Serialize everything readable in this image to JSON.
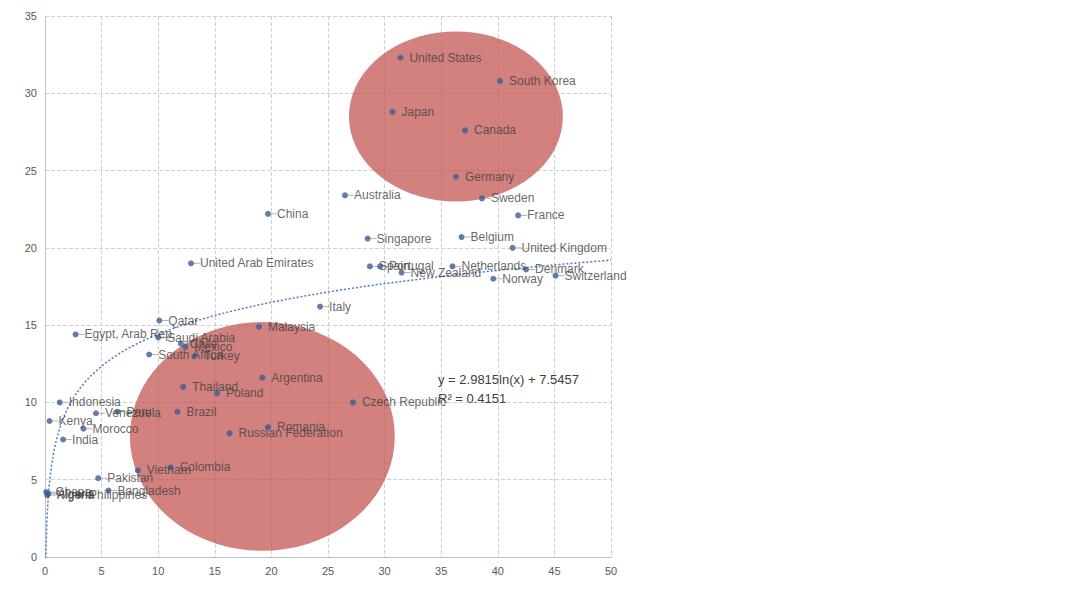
{
  "chart_data": {
    "type": "scatter",
    "xlim": [
      0,
      50
    ],
    "xticks": [
      0,
      5,
      10,
      15,
      20,
      25,
      30,
      35,
      40,
      45,
      50
    ],
    "ylim": [
      0,
      35
    ],
    "yticks": [
      0,
      5,
      10,
      15,
      20,
      25,
      30,
      35
    ],
    "grid": true,
    "color": "#3b5c94",
    "labels": [
      "United States",
      "South Korea",
      "Japan",
      "Canada",
      "Germany",
      "Sweden",
      "France",
      "United Kingdom",
      "Belgium",
      "Netherlands",
      "Switzerland",
      "Denmark",
      "Norway",
      "Singapore",
      "Australia",
      "Spain",
      "Portugal",
      "New Zealand",
      "Italy",
      "China",
      "United Arab Emirates",
      "Qatar",
      "Saudi Arabia",
      "Egypt, Arab Rep.",
      "South Africa",
      "Malaysia",
      "Mexico",
      "Chile",
      "Turkey",
      "Thailand",
      "Brazil",
      "Poland",
      "Argentina",
      "Russian Federation",
      "Romania",
      "Czech Republic",
      "Indonesia",
      "Kenya",
      "India",
      "Morocco",
      "Peru",
      "Venezuela",
      "Colombia",
      "Pakistan",
      "Bangladesh",
      "Vietnam",
      "Philippines",
      "Nigeria",
      "Ghana",
      "Algeria"
    ],
    "x": [
      31.4,
      40.2,
      30.7,
      37.1,
      36.3,
      38.6,
      41.8,
      41.3,
      36.8,
      36.0,
      45.1,
      42.5,
      39.6,
      28.5,
      26.5,
      28.7,
      29.6,
      31.5,
      24.3,
      19.7,
      12.9,
      10.1,
      10.0,
      2.7,
      9.2,
      18.9,
      12.4,
      12.0,
      13.2,
      12.2,
      11.7,
      15.2,
      19.2,
      16.3,
      19.7,
      27.2,
      1.3,
      0.4,
      1.6,
      3.4,
      6.4,
      4.5,
      11.1,
      4.7,
      5.6,
      8.2,
      3.1,
      0.2,
      0.1,
      0.3
    ],
    "values": [
      32.3,
      30.8,
      28.8,
      27.6,
      24.6,
      23.2,
      22.1,
      20.0,
      20.7,
      18.8,
      18.2,
      18.6,
      18.0,
      20.6,
      23.4,
      18.8,
      18.8,
      18.4,
      16.2,
      22.2,
      19.0,
      15.3,
      14.2,
      14.4,
      13.1,
      14.9,
      13.6,
      13.8,
      13.0,
      11.0,
      9.4,
      10.6,
      11.6,
      8.0,
      8.4,
      10.0,
      10.0,
      8.8,
      7.6,
      8.3,
      9.4,
      9.3,
      5.8,
      5.1,
      4.3,
      5.6,
      4.0,
      4.0,
      4.2,
      4.1
    ],
    "trendline": {
      "equation": "y = 2.9815ln(x) + 7.5457",
      "r_squared_label": "R² = 0.4151",
      "coefficient": 2.9815,
      "intercept": 7.5457,
      "color": "#4a7ebb",
      "line_style": "dotted"
    },
    "highlights": [
      {
        "cx": 36.3,
        "cy": 28.5,
        "rx": 9.45,
        "ry": 5.5,
        "color": "#c0504d"
      },
      {
        "cx": 19.2,
        "cy": 7.8,
        "rx": 11.7,
        "ry": 7.4,
        "color": "#c0504d"
      }
    ]
  }
}
